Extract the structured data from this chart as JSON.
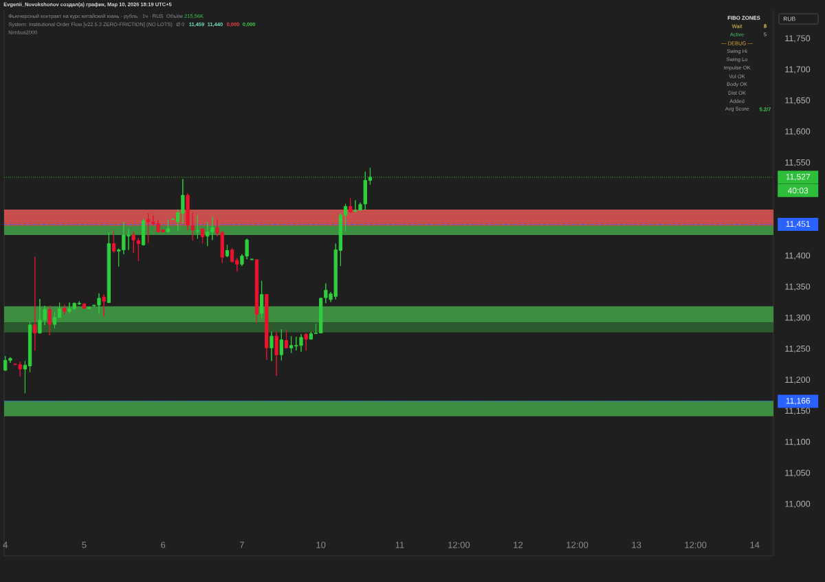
{
  "chart_data": {
    "type": "candlestick",
    "title": "Фьючерсный контракт на курс китайский юань - рубль · 1ч · RUS",
    "subtitle": "System: Institutional Order Flow [v22.5.3 ZERO-FRICTION] (NO LOTS)",
    "categories": [
      "4",
      null,
      null,
      null,
      null,
      null,
      null,
      null,
      null,
      null,
      null,
      null,
      null,
      null,
      null,
      null,
      "5",
      null,
      null,
      null,
      null,
      null,
      null,
      null,
      null,
      null,
      null,
      null,
      null,
      null,
      null,
      null,
      "6",
      null,
      null,
      null,
      null,
      null,
      null,
      null,
      null,
      null,
      null,
      null,
      null,
      null,
      null,
      null,
      "7",
      null,
      null,
      null,
      null,
      null,
      null,
      null,
      null,
      null,
      null,
      null,
      null,
      null,
      null,
      null,
      "10",
      null,
      null,
      null,
      null,
      null,
      null,
      null,
      null,
      null,
      null,
      null,
      null,
      null,
      null,
      null,
      "11",
      null,
      null,
      null,
      null,
      null,
      null,
      null,
      null,
      null,
      null,
      null,
      "12:00",
      null,
      null,
      null,
      null,
      null,
      null,
      null,
      null,
      null,
      null,
      null,
      "12",
      null,
      null,
      null,
      null,
      null,
      null,
      null,
      null,
      null,
      null,
      null,
      "12:00",
      null,
      null,
      null,
      null,
      null,
      null,
      null,
      null,
      null,
      null,
      null,
      "13",
      null,
      null,
      null,
      null,
      null,
      null,
      null,
      null,
      null,
      null,
      null,
      "12:00",
      null,
      null,
      null,
      null,
      null,
      null,
      null,
      null,
      null,
      null,
      null,
      "14",
      null,
      null,
      null
    ],
    "ohlc": [
      [
        11.216,
        11.239,
        11.215,
        11.232
      ],
      [
        11.232,
        11.237,
        11.228,
        11.235
      ],
      [
        11.226,
        11.227,
        11.225,
        11.225
      ],
      [
        11.225,
        11.23,
        11.206,
        11.218
      ],
      [
        11.218,
        11.231,
        11.179,
        11.224
      ],
      [
        11.223,
        11.294,
        11.213,
        11.289
      ],
      [
        11.289,
        11.399,
        11.248,
        11.276
      ],
      [
        11.276,
        11.331,
        11.275,
        11.297
      ],
      [
        11.297,
        11.32,
        11.289,
        11.314
      ],
      [
        11.314,
        11.32,
        11.272,
        11.29
      ],
      [
        11.29,
        11.31,
        11.284,
        11.301
      ],
      [
        11.301,
        11.325,
        11.301,
        11.315
      ],
      [
        11.316,
        11.322,
        11.306,
        11.311
      ],
      [
        11.311,
        11.325,
        11.307,
        11.315
      ],
      [
        11.315,
        11.325,
        11.314,
        11.324
      ],
      [
        11.323,
        11.327,
        11.321,
        11.324
      ],
      [
        11.323,
        11.324,
        11.315,
        11.316
      ],
      [
        11.315,
        11.318,
        11.315,
        11.317
      ],
      [
        11.32,
        11.321,
        11.319,
        11.321
      ],
      [
        11.321,
        11.34,
        11.307,
        11.332
      ],
      [
        11.334,
        11.338,
        11.303,
        11.327
      ],
      [
        11.325,
        11.438,
        11.325,
        11.42
      ],
      [
        11.42,
        11.442,
        11.405,
        11.408
      ],
      [
        11.408,
        11.412,
        11.383,
        11.41
      ],
      [
        11.41,
        11.455,
        11.403,
        11.434
      ],
      [
        11.432,
        11.444,
        11.41,
        11.434
      ],
      [
        11.434,
        11.439,
        11.405,
        11.426
      ],
      [
        11.425,
        11.429,
        11.392,
        11.42
      ],
      [
        11.418,
        11.46,
        11.417,
        11.457
      ],
      [
        11.459,
        11.469,
        11.421,
        11.455
      ],
      [
        11.455,
        11.465,
        11.449,
        11.452
      ],
      [
        11.452,
        11.458,
        11.438,
        11.439
      ],
      [
        11.442,
        11.443,
        11.438,
        11.439
      ],
      [
        11.439,
        11.459,
        11.438,
        11.444
      ],
      [
        11.459,
        11.46,
        11.459,
        11.46
      ],
      [
        11.455,
        11.475,
        11.441,
        11.47
      ],
      [
        11.469,
        11.524,
        11.452,
        11.498
      ],
      [
        11.498,
        11.501,
        11.442,
        11.45
      ],
      [
        11.449,
        11.47,
        11.425,
        11.442
      ],
      [
        11.44,
        11.466,
        11.428,
        11.441
      ],
      [
        11.444,
        11.445,
        11.42,
        11.431
      ],
      [
        11.432,
        11.455,
        11.416,
        11.439
      ],
      [
        11.439,
        11.463,
        11.426,
        11.446
      ],
      [
        11.446,
        11.459,
        11.432,
        11.437
      ],
      [
        11.438,
        11.44,
        11.389,
        11.398
      ],
      [
        11.4,
        11.418,
        11.398,
        11.409
      ],
      [
        11.41,
        11.413,
        11.39,
        11.391
      ],
      [
        11.393,
        11.397,
        11.375,
        11.387
      ],
      [
        11.387,
        11.403,
        11.384,
        11.4
      ],
      [
        11.4,
        11.428,
        11.395,
        11.426
      ],
      [
        11.394,
        11.396,
        11.394,
        11.395
      ],
      [
        11.394,
        11.395,
        11.292,
        11.306
      ],
      [
        11.308,
        11.36,
        11.3,
        11.338
      ],
      [
        11.338,
        11.339,
        11.233,
        11.252
      ],
      [
        11.252,
        11.278,
        11.231,
        11.271
      ],
      [
        11.271,
        11.278,
        11.207,
        11.241
      ],
      [
        11.241,
        11.282,
        11.232,
        11.265
      ],
      [
        11.264,
        11.281,
        11.252,
        11.252
      ],
      [
        11.252,
        11.271,
        11.244,
        11.256
      ],
      [
        11.255,
        11.27,
        11.248,
        11.256
      ],
      [
        11.256,
        11.274,
        11.246,
        11.269
      ],
      [
        11.274,
        11.276,
        11.248,
        11.266
      ],
      [
        11.266,
        11.278,
        11.266,
        11.275
      ],
      [
        11.275,
        11.291,
        11.275,
        11.276
      ],
      [
        11.276,
        11.333,
        11.276,
        11.332
      ],
      [
        11.333,
        11.356,
        11.324,
        11.345
      ],
      [
        11.33,
        11.342,
        11.326,
        11.339
      ],
      [
        11.335,
        11.42,
        11.33,
        11.41
      ],
      [
        11.409,
        11.469,
        11.384,
        11.466
      ],
      [
        11.466,
        11.484,
        11.439,
        11.48
      ],
      [
        11.48,
        11.493,
        11.469,
        11.471
      ],
      [
        11.472,
        11.49,
        11.471,
        11.473
      ],
      [
        11.474,
        11.486,
        11.473,
        11.483
      ],
      [
        11.484,
        11.536,
        11.474,
        11.522
      ],
      [
        11.522,
        11.542,
        11.515,
        11.527
      ],
      null,
      null,
      null,
      null,
      null,
      null,
      null,
      null,
      null,
      null,
      null,
      null,
      null,
      null,
      null,
      null,
      null,
      null,
      null,
      null,
      null,
      null,
      null,
      null,
      null,
      null,
      null,
      null,
      null,
      null,
      null,
      null,
      null,
      null,
      null,
      null,
      null,
      null,
      null,
      null,
      null,
      null,
      null,
      null,
      null,
      null,
      null,
      null,
      null,
      null,
      null,
      null,
      null,
      null,
      null,
      null,
      null,
      null,
      null,
      null,
      null,
      null,
      null,
      null,
      null,
      null,
      null,
      null,
      null,
      null,
      null,
      null,
      null,
      null,
      null,
      null,
      null,
      null,
      null,
      null,
      null
    ],
    "colors": [
      "#2fce3c",
      "#2fce3c",
      "#e8142e",
      "#e8142e",
      "#2fce3c",
      "#2fce3c",
      "#e8142e",
      "#2fce3c",
      "#2fce3c",
      "#e8142e",
      "#2fce3c",
      "#2fce3c",
      "#e8142e",
      "#2fce3c",
      "#2fce3c",
      "#2fce3c",
      "#e8142e",
      "#2fce3c",
      "#2fce3c",
      "#2fce3c",
      "#e8142e",
      "#2fce3c",
      "#e8142e",
      "#2fce3c",
      "#2fce3c",
      "#2fce3c",
      "#e8142e",
      "#e8142e",
      "#2fce3c",
      "#e8142e",
      "#e8142e",
      "#e8142e",
      "#e8142e",
      "#2fce3c",
      "#2fce3c",
      "#2fce3c",
      "#2fce3c",
      "#e8142e",
      "#e8142e",
      "#2fce3c",
      "#e8142e",
      "#2fce3c",
      "#2fce3c",
      "#e8142e",
      "#e8142e",
      "#2fce3c",
      "#e8142e",
      "#e8142e",
      "#2fce3c",
      "#2fce3c",
      "#2fce3c",
      "#e8142e",
      "#2fce3c",
      "#e8142e",
      "#2fce3c",
      "#e8142e",
      "#2fce3c",
      "#e8142e",
      "#2fce3c",
      "#2fce3c",
      "#2fce3c",
      "#e8142e",
      "#2fce3c",
      "#2fce3c",
      "#2fce3c",
      "#2fce3c",
      "#2fce3c",
      "#2fce3c",
      "#2fce3c",
      "#2fce3c",
      "#e8142e",
      "#2fce3c",
      "#2fce3c",
      "#2fce3c",
      "#2fce3c",
      null,
      null,
      null,
      null,
      null,
      null,
      null,
      null,
      null,
      null,
      null,
      null,
      null,
      null,
      null,
      null,
      null,
      null,
      null,
      null,
      null,
      null,
      null,
      null,
      null,
      null,
      null,
      null,
      null,
      null,
      null,
      null,
      null,
      null,
      null,
      null,
      null,
      null,
      null,
      null,
      null,
      null,
      null,
      null,
      null,
      null,
      null,
      null,
      null,
      null,
      null,
      null,
      null,
      null,
      null,
      null,
      null,
      null,
      null,
      null,
      null,
      null,
      null,
      null,
      null,
      null,
      null,
      null,
      null,
      null,
      null,
      null,
      null,
      null,
      null,
      null,
      null,
      null,
      null,
      null,
      null
    ],
    "ylim": [
      10.917,
      11.797
    ],
    "yticks": [
      {
        "value": 11.0,
        "label": "11,000"
      },
      {
        "value": 11.05,
        "label": "11,050"
      },
      {
        "value": 11.1,
        "label": "11,100"
      },
      {
        "value": 11.15,
        "label": "11,150"
      },
      {
        "value": 11.2,
        "label": "11,200"
      },
      {
        "value": 11.25,
        "label": "11,250"
      },
      {
        "value": 11.3,
        "label": "11,300"
      },
      {
        "value": 11.35,
        "label": "11,350"
      },
      {
        "value": 11.4,
        "label": "11,400"
      },
      {
        "value": 11.55,
        "label": "11,550"
      },
      {
        "value": 11.6,
        "label": "11,600"
      },
      {
        "value": 11.65,
        "label": "11,650"
      },
      {
        "value": 11.7,
        "label": "11,700"
      },
      {
        "value": 11.75,
        "label": "11,750"
      }
    ],
    "bands": [
      {
        "axis": "y",
        "from": 11.445,
        "to": 11.475,
        "color": "#c64f4d"
      },
      {
        "axis": "y",
        "from": 11.434,
        "to": 11.449,
        "color": "#3e8e41"
      },
      {
        "axis": "y",
        "from": 11.293,
        "to": 11.319,
        "color": "#3e8e41"
      },
      {
        "axis": "y",
        "from": 11.277,
        "to": 11.293,
        "color": "#2c5a2f"
      },
      {
        "axis": "y",
        "from": 11.142,
        "to": 11.167,
        "color": "#3e8e41"
      }
    ],
    "ref_lines": [
      {
        "axis": "y",
        "value": 11.527,
        "label": "11,527",
        "color": "#2ebf3a",
        "line_style": "dotted"
      },
      {
        "axis": "y",
        "value": 11.451,
        "label": "11,451",
        "color": "#2962ff",
        "line_style": "dashed"
      },
      {
        "axis": "y",
        "value": 11.166,
        "label": "11,166",
        "color": "#2962ff",
        "line_style": "dashed"
      }
    ],
    "annotations": [
      "Evgenii_Novokshonov создал(а) график, Мар 10, 2026 18:19 UTC+5",
      "Объём",
      "215,56K",
      "Ø 0",
      "11,459",
      "11,440",
      "0,000",
      "0,000",
      "Nimbus2000",
      "40:03",
      "RUB",
      "FIBO ZONES",
      "Wait",
      "8",
      "Active",
      "5",
      "— DEBUG —",
      "Swing Hi",
      "Swing Lo",
      "Impulse OK",
      "Vol OK",
      "Body OK",
      "Dist OK",
      "Added",
      "Avg Score",
      "5.2/7"
    ]
  }
}
